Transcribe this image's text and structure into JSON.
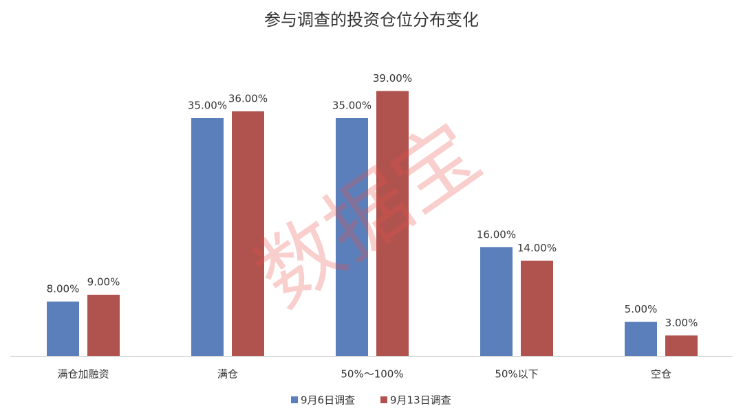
{
  "chart_data": {
    "type": "bar",
    "title": "参与调查的投资仓位分布变化",
    "categories": [
      "满仓加融资",
      "满仓",
      "50%～100%",
      "50%以下",
      "空仓"
    ],
    "series": [
      {
        "name": "9月6日调查",
        "color": "#5a7fba",
        "values": [
          8,
          35,
          35,
          16,
          5
        ],
        "value_labels": [
          "8.00%",
          "35.00%",
          "35.00%",
          "16.00%",
          "5.00%"
        ]
      },
      {
        "name": "9月13日调查",
        "color": "#b0524e",
        "values": [
          9,
          36,
          39,
          14,
          3
        ],
        "value_labels": [
          "9.00%",
          "36.00%",
          "39.00%",
          "14.00%",
          "3.00%"
        ]
      }
    ],
    "legend": "bottom",
    "watermark": "数据宝"
  }
}
